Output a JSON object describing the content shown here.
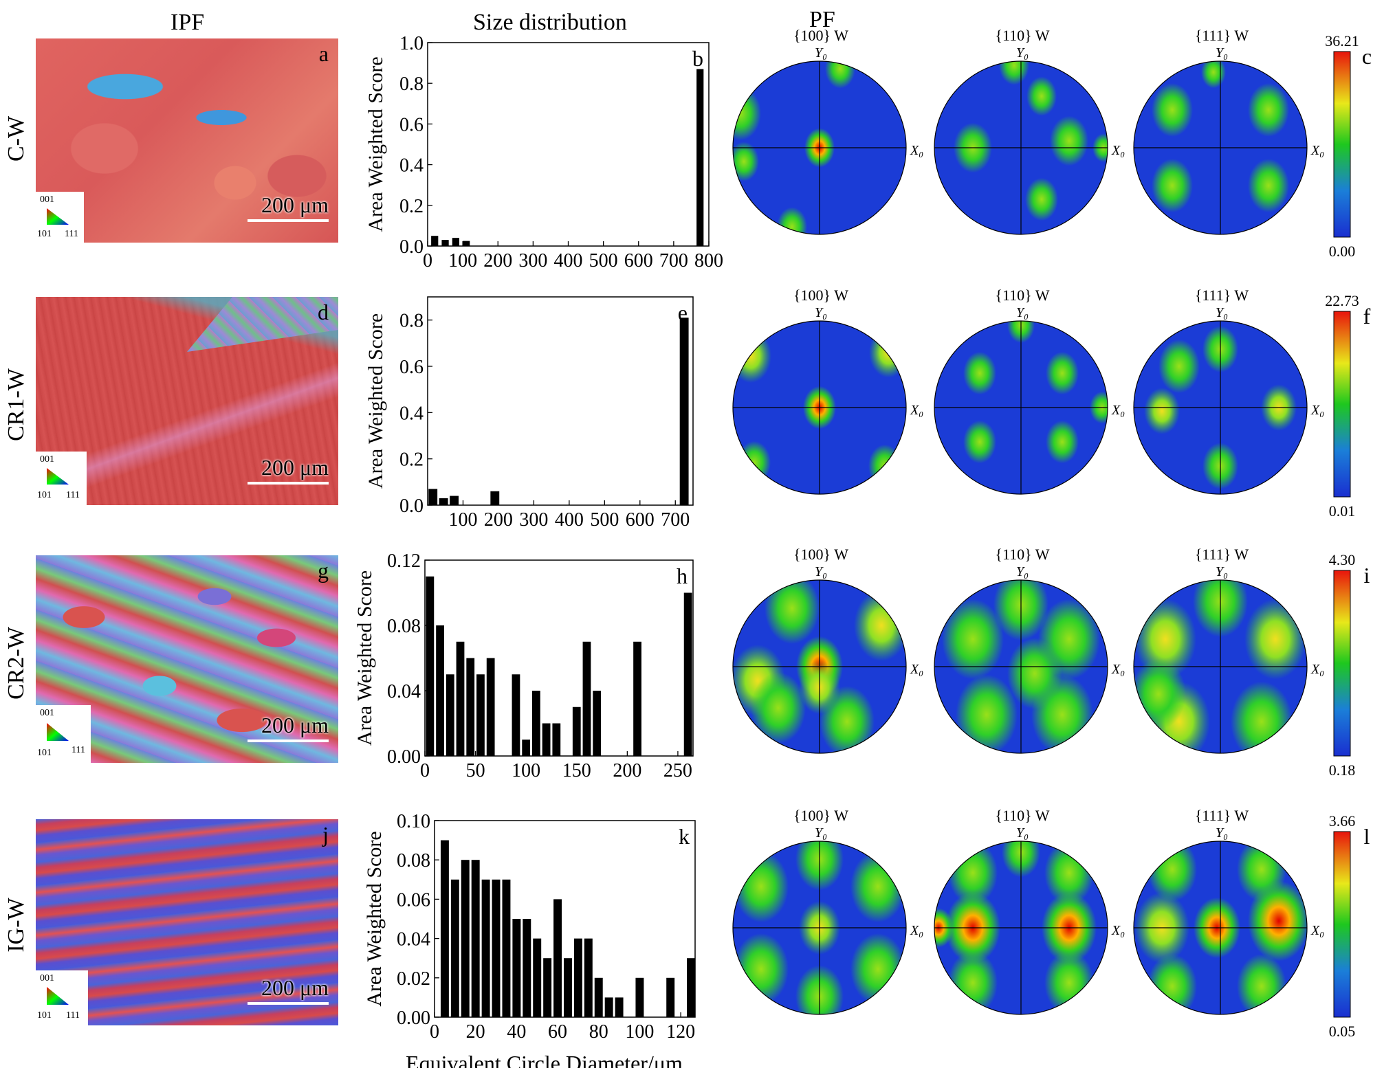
{
  "headers": {
    "ipf": "IPF",
    "size": "Size distribution",
    "pf": "PF"
  },
  "rows": [
    {
      "label": "C-W",
      "ipf_letter": "a",
      "hist_letter": "b",
      "pf_letter": "c",
      "cbar_max": "36.21",
      "cbar_min": "0.00"
    },
    {
      "label": "CR1-W",
      "ipf_letter": "d",
      "hist_letter": "e",
      "pf_letter": "f",
      "cbar_max": "22.73",
      "cbar_min": "0.01"
    },
    {
      "label": "CR2-W",
      "ipf_letter": "g",
      "hist_letter": "h",
      "pf_letter": "i",
      "cbar_max": "4.30",
      "cbar_min": "0.18"
    },
    {
      "label": "IG-W",
      "ipf_letter": "j",
      "hist_letter": "k",
      "pf_letter": "l",
      "cbar_max": "3.66",
      "cbar_min": "0.05"
    }
  ],
  "ipf": {
    "scale_bar": "200 μm",
    "key_001": "001",
    "key_101": "101",
    "key_111": "111"
  },
  "pf": {
    "titles": [
      "{100} W",
      "{110} W",
      "{111} W"
    ],
    "y_axis": "Y₀",
    "x_axis": "X₀"
  },
  "colors": {
    "bar": "#000000",
    "pf_low": "#1b3cd6",
    "pf_mid": "#22c21e",
    "pf_high": "#e81e0c"
  },
  "chart_data": [
    {
      "type": "bar",
      "letter": "b",
      "ylabel": "Area Weighted Score",
      "xlabel": "",
      "xlim": [
        0,
        800
      ],
      "ylim": [
        0,
        1.0
      ],
      "bar_width": 20,
      "xticks": [
        0,
        100,
        200,
        300,
        400,
        500,
        600,
        700,
        800
      ],
      "yticks": [
        0.0,
        0.2,
        0.4,
        0.6,
        0.8,
        1.0
      ],
      "ytick_labels": [
        "0.0",
        "0.2",
        "0.4",
        "0.6",
        "0.8",
        "1.0"
      ],
      "x": [
        20,
        50,
        80,
        110,
        775
      ],
      "values": [
        0.05,
        0.03,
        0.04,
        0.025,
        0.87
      ]
    },
    {
      "type": "bar",
      "letter": "e",
      "ylabel": "Area Weighted Score",
      "xlabel": "",
      "xlim": [
        0,
        750
      ],
      "ylim": [
        0,
        0.9
      ],
      "bar_width": 25,
      "xticks": [
        100,
        200,
        300,
        400,
        500,
        600,
        700
      ],
      "yticks": [
        0.0,
        0.2,
        0.4,
        0.6,
        0.8
      ],
      "ytick_labels": [
        "0.0",
        "0.2",
        "0.4",
        "0.6",
        "0.8"
      ],
      "x": [
        15,
        45,
        75,
        190,
        725
      ],
      "values": [
        0.07,
        0.03,
        0.04,
        0.06,
        0.81
      ]
    },
    {
      "type": "bar",
      "letter": "h",
      "ylabel": "Area Weighted Score",
      "xlabel": "",
      "xlim": [
        0,
        265
      ],
      "ylim": [
        0,
        0.12
      ],
      "bar_width": 8,
      "xticks": [
        0,
        50,
        100,
        150,
        200,
        250
      ],
      "yticks": [
        0.0,
        0.04,
        0.08,
        0.12
      ],
      "ytick_labels": [
        "0.00",
        "0.04",
        "0.08",
        "0.12"
      ],
      "x": [
        5,
        15,
        25,
        35,
        45,
        55,
        65,
        90,
        100,
        110,
        120,
        130,
        150,
        160,
        170,
        210,
        260
      ],
      "values": [
        0.11,
        0.08,
        0.05,
        0.07,
        0.06,
        0.05,
        0.06,
        0.05,
        0.01,
        0.04,
        0.02,
        0.02,
        0.03,
        0.07,
        0.04,
        0.07,
        0.1
      ]
    },
    {
      "type": "bar",
      "letter": "k",
      "ylabel": "Area Weighted Score",
      "xlabel": "Equivalent Circle Diameter/μm",
      "xlim": [
        0,
        127
      ],
      "ylim": [
        0,
        0.1
      ],
      "bar_width": 4,
      "xticks": [
        0,
        20,
        40,
        60,
        80,
        100,
        120
      ],
      "yticks": [
        0.0,
        0.02,
        0.04,
        0.06,
        0.08,
        0.1
      ],
      "ytick_labels": [
        "0.00",
        "0.02",
        "0.04",
        "0.06",
        "0.08",
        "0.10"
      ],
      "x": [
        5,
        10,
        15,
        20,
        25,
        30,
        35,
        40,
        45,
        50,
        55,
        60,
        65,
        70,
        75,
        80,
        85,
        90,
        100,
        115,
        125
      ],
      "values": [
        0.09,
        0.07,
        0.08,
        0.08,
        0.07,
        0.07,
        0.07,
        0.05,
        0.05,
        0.04,
        0.03,
        0.06,
        0.03,
        0.04,
        0.04,
        0.02,
        0.01,
        0.01,
        0.02,
        0.02,
        0.03
      ]
    }
  ]
}
